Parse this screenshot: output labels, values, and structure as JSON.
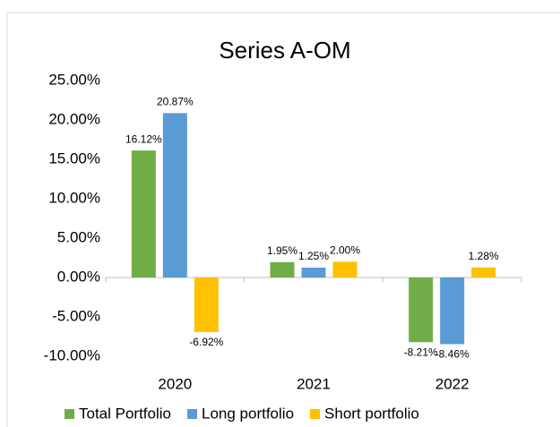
{
  "chart_data": {
    "type": "bar",
    "title": "Series A-OM",
    "categories": [
      "2020",
      "2021",
      "2022"
    ],
    "series": [
      {
        "name": "Total Portfolio",
        "color": "#70ad47",
        "values": [
          16.12,
          1.95,
          -8.21
        ],
        "value_labels": [
          "16.12%",
          "1.95%",
          "-8.21%"
        ]
      },
      {
        "name": "Long portfolio",
        "color": "#5b9bd5",
        "values": [
          20.87,
          1.25,
          -8.46
        ],
        "value_labels": [
          "20.87%",
          "1.25%",
          "-8.46%"
        ]
      },
      {
        "name": "Short portfolio",
        "color": "#ffc000",
        "values": [
          -6.92,
          2.0,
          1.28
        ],
        "value_labels": [
          "-6.92%",
          "2.00%",
          "1.28%"
        ]
      }
    ],
    "ylim": [
      -10,
      25
    ],
    "yticks": [
      {
        "value": -10,
        "label": "-10.00%"
      },
      {
        "value": -5,
        "label": "-5.00%"
      },
      {
        "value": 0,
        "label": "0.00%"
      },
      {
        "value": 5,
        "label": "5.00%"
      },
      {
        "value": 10,
        "label": "10.00%"
      },
      {
        "value": 15,
        "label": "15.00%"
      },
      {
        "value": 20,
        "label": "20.00%"
      },
      {
        "value": 25,
        "label": "25.00%"
      }
    ],
    "grid": false,
    "legend": "bottom"
  }
}
